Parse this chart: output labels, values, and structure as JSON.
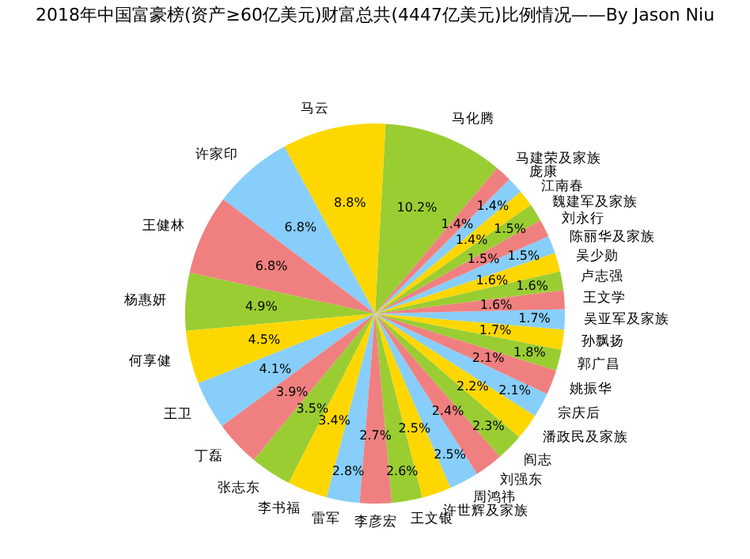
{
  "chart_data": {
    "type": "pie",
    "title": "2018年中国富豪榜(资产≥60亿美元)财富总共(4447亿美元)比例情况——By Jason Niu",
    "categories": [
      "马化腾",
      "马云",
      "许家印",
      "王健林",
      "杨惠妍",
      "何享健",
      "王卫",
      "丁磊",
      "张志东",
      "李书福",
      "雷军",
      "李彦宏",
      "王文银",
      "许世辉及家族",
      "周鸿祎",
      "刘强东",
      "阎志",
      "潘政民及家族",
      "宗庆后",
      "姚振华",
      "郭广昌",
      "孙飘扬",
      "吴亚军及家族",
      "王文学",
      "卢志强",
      "吴少勋",
      "陈丽华及家族",
      "刘永行",
      "魏建军及家族",
      "江南春",
      "庞康",
      "马建荣及家族"
    ],
    "values": [
      10.2,
      8.8,
      6.8,
      6.8,
      4.9,
      4.5,
      4.1,
      3.9,
      3.5,
      3.4,
      2.8,
      2.7,
      2.6,
      2.5,
      2.5,
      2.4,
      2.3,
      2.2,
      2.1,
      2.1,
      1.8,
      1.7,
      1.7,
      1.6,
      1.6,
      1.6,
      1.5,
      1.5,
      1.5,
      1.4,
      1.4,
      1.4
    ],
    "colors": [
      "#9acd32",
      "#ffd700",
      "#87cefa",
      "#f08080",
      "#9acd32",
      "#ffd700",
      "#87cefa",
      "#f08080",
      "#9acd32",
      "#ffd700",
      "#87cefa",
      "#f08080",
      "#9acd32",
      "#ffd700",
      "#87cefa",
      "#f08080",
      "#9acd32",
      "#ffd700",
      "#87cefa",
      "#f08080",
      "#9acd32",
      "#ffd700",
      "#87cefa",
      "#f08080",
      "#9acd32",
      "#ffd700",
      "#87cefa",
      "#f08080",
      "#9acd32",
      "#ffd700",
      "#87cefa",
      "#f08080"
    ],
    "value_labels": [
      "10.2%",
      "8.8%",
      "6.8%",
      "6.8%",
      "4.9%",
      "4.5%",
      "4.1%",
      "3.9%",
      "3.5%",
      "3.4%",
      "2.8%",
      "2.7%",
      "2.6%",
      "2.5%",
      "2.5%",
      "2.4%",
      "2.3%",
      "2.2%",
      "2.1%",
      "2.1%",
      "1.8%",
      "1.7%",
      "1.7%",
      "1.6%",
      "1.6%",
      "1.6%",
      "1.5%",
      "1.5%",
      "1.5%",
      "1.4%",
      "1.4%",
      "1.4%"
    ]
  }
}
